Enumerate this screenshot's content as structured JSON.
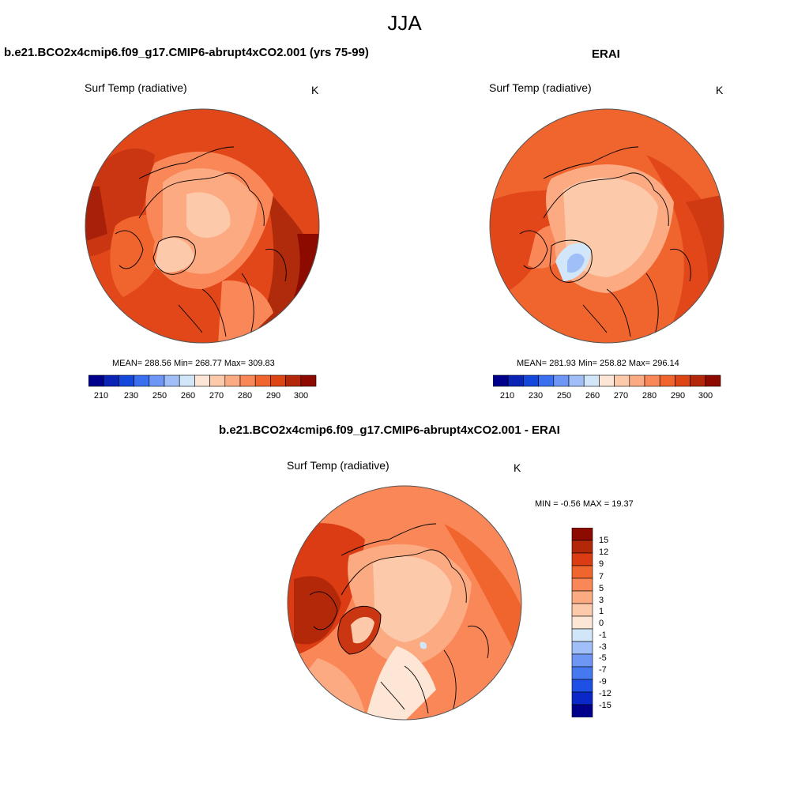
{
  "figure_title": "JJA",
  "panels": [
    {
      "title": "b.e21.BCO2x4cmip6.f09_g17.CMIP6-abrupt4xCO2.001 (yrs 75-99)",
      "variable": "Surf Temp (radiative)",
      "units": "K",
      "stats": "MEAN= 288.56  Min= 268.77  Max= 309.83"
    },
    {
      "title": "ERAI",
      "variable": "Surf Temp (radiative)",
      "units": "K",
      "stats": "MEAN= 281.93  Min= 258.82  Max= 296.14"
    },
    {
      "title": "b.e21.BCO2x4cmip6.f09_g17.CMIP6-abrupt4xCO2.001 - ERAI",
      "variable": "Surf Temp (radiative)",
      "units": "K",
      "stats": "MIN =  -0.56 MAX =  19.37"
    }
  ],
  "colorbar_abs": {
    "colors": [
      "#00008c",
      "#0a24b4",
      "#1448dc",
      "#3c6ef0",
      "#6e96f5",
      "#a0bef8",
      "#d2e6fa",
      "#fde6d6",
      "#fcc9aa",
      "#fcaa82",
      "#fa8758",
      "#f0642e",
      "#dc4614",
      "#b4280a",
      "#8c0a00"
    ],
    "tick_labels": [
      "210",
      "230",
      "250",
      "260",
      "270",
      "280",
      "290",
      "300"
    ]
  },
  "colorbar_diff": {
    "colors_top_to_bottom": [
      "#8c0a00",
      "#b4280a",
      "#dc3c14",
      "#f0642e",
      "#fa8758",
      "#fcaa82",
      "#fcc9aa",
      "#fde6d6",
      "#d2e6fa",
      "#a0bef8",
      "#6e96f5",
      "#4678f0",
      "#1e50e6",
      "#0a28c8",
      "#00008c"
    ],
    "tick_labels": [
      "15",
      "12",
      "9",
      "7",
      "5",
      "3",
      "1",
      "0",
      "-1",
      "-3",
      "-5",
      "-7",
      "-9",
      "-12",
      "-15"
    ]
  }
}
